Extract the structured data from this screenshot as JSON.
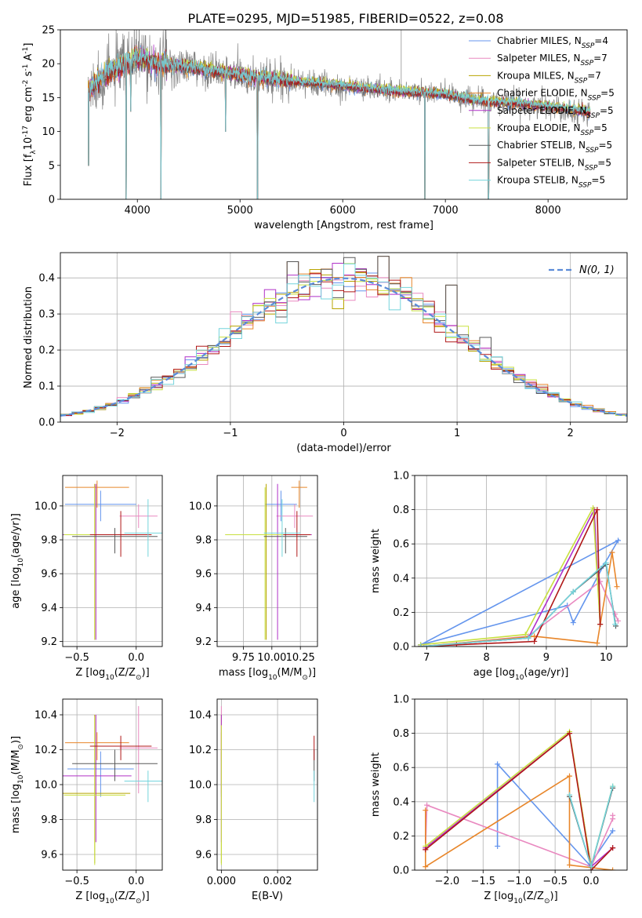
{
  "figure": {
    "title": "PLATE=0295, MJD=51985, FIBERID=0522, z=0.08"
  },
  "colors": {
    "Chabrier MILES": "#6495ed",
    "Salpeter MILES": "#e989c0",
    "Kroupa MILES": "#b8a400",
    "Chabrier ELODIE": "#e8862a",
    "Salpeter ELODIE": "#b030c8",
    "Kroupa ELODIE": "#c8e040",
    "Chabrier STELIB": "#595959",
    "Salpeter STELIB": "#b01818",
    "Kroupa STELIB": "#74d4dc",
    "gaussian": "#5b8bd8",
    "grid": "#b0b0b0",
    "spectrum_data": "#808080"
  },
  "chart_data": [
    {
      "id": "spectrum",
      "type": "line",
      "xlabel": "wavelength [Angstrom, rest frame]",
      "ylabel": "Flux [f$_\\lambda$10$^{-17}$ erg cm$^{-2}$ s$^{-1}$ A$^{-1}$]",
      "xlim": [
        3250,
        8770
      ],
      "ylim": [
        0,
        25
      ],
      "xticks": [
        4000,
        5000,
        6000,
        7000,
        8000
      ],
      "yticks": [
        0,
        5,
        10,
        15,
        20,
        25
      ],
      "grid": false,
      "legend_position": "top-right",
      "legend": [
        {
          "model": "Chabrier MILES",
          "label": "Chabrier MILES, N",
          "sub": "SSP",
          "eq": "=4"
        },
        {
          "model": "Salpeter MILES",
          "label": "Salpeter MILES, N",
          "sub": "SSP",
          "eq": "=7"
        },
        {
          "model": "Kroupa MILES",
          "label": "Kroupa MILES, N",
          "sub": "SSP",
          "eq": "=7"
        },
        {
          "model": "Chabrier ELODIE",
          "label": "Chabrier ELODIE, N",
          "sub": "SSP",
          "eq": "=5"
        },
        {
          "model": "Salpeter ELODIE",
          "label": "Salpeter ELODIE, N",
          "sub": "SSP",
          "eq": "=5"
        },
        {
          "model": "Kroupa ELODIE",
          "label": "Kroupa ELODIE, N",
          "sub": "SSP",
          "eq": "=5"
        },
        {
          "model": "Chabrier STELIB",
          "label": "Chabrier STELIB, N",
          "sub": "SSP",
          "eq": "=5"
        },
        {
          "model": "Salpeter STELIB",
          "label": "Salpeter STELIB, N",
          "sub": "SSP",
          "eq": "=5"
        },
        {
          "model": "Kroupa STELIB",
          "label": "Kroupa STELIB, N",
          "sub": "SSP",
          "eq": "=5"
        }
      ],
      "trend_x": [
        3520,
        3700,
        3900,
        4000,
        4200,
        4500,
        4800,
        5000,
        5300,
        5600,
        5900,
        6200,
        6500,
        6800,
        7000,
        7200,
        7400,
        7600,
        7800,
        8000,
        8200,
        8400
      ],
      "trend_y": [
        16.0,
        18.5,
        20.0,
        21.0,
        20.0,
        19.5,
        18.8,
        18.3,
        17.8,
        17.3,
        16.9,
        16.4,
        16.0,
        15.7,
        15.5,
        14.8,
        14.4,
        14.3,
        14.0,
        13.7,
        13.3,
        12.8
      ],
      "absorption_features": [
        {
          "x": 3525,
          "y": 5.0
        },
        {
          "x": 3890,
          "y": 0.0
        },
        {
          "x": 3935,
          "y": 13.0
        },
        {
          "x": 4230,
          "y": 0.0
        },
        {
          "x": 4860,
          "y": 10.0
        },
        {
          "x": 5170,
          "y": 0.0
        },
        {
          "x": 6800,
          "y": 0.0
        },
        {
          "x": 7420,
          "y": 0.0
        }
      ],
      "emission_features": [
        {
          "x": 6570,
          "y": 25.0
        }
      ]
    },
    {
      "id": "residuals",
      "type": "area",
      "xlabel": "(data-model)/error",
      "ylabel": "Normed distribution",
      "xlim": [
        -2.5,
        2.5
      ],
      "ylim": [
        0,
        0.47
      ],
      "xticks": [
        -2,
        -1,
        0,
        1,
        2
      ],
      "yticks": [
        0.0,
        0.1,
        0.2,
        0.3,
        0.4
      ],
      "grid": true,
      "legend_position": "top-right",
      "legend": [
        {
          "label": "$\\mathcal{N}(0,1)$",
          "symbol": "N(0, 1)"
        }
      ],
      "bin_width": 0.1,
      "bin_start": -2.5,
      "peak_bins": [
        {
          "x": -0.45,
          "y": 0.445
        },
        {
          "x": 0.35,
          "y": 0.46
        },
        {
          "x": 0.95,
          "y": 0.38
        },
        {
          "x": 1.25,
          "y": 0.235
        }
      ]
    },
    {
      "id": "age-vs-Z",
      "type": "scatter",
      "xlabel": "Z [log$_{10}$(Z/Z$_\\odot$)]",
      "ylabel": "age  [log$_{10}$(age/yr)]",
      "xlim": [
        -0.62,
        0.22
      ],
      "ylim": [
        9.17,
        10.18
      ],
      "xticks": [
        -0.5,
        0.0
      ],
      "yticks": [
        9.2,
        9.4,
        9.6,
        9.8,
        10.0
      ],
      "grid": true,
      "points": [
        {
          "model": "Chabrier MILES",
          "x": -0.3,
          "y": 10.01,
          "xerr": 0.3,
          "yerr": [
            0.1,
            0.08
          ]
        },
        {
          "model": "Salpeter MILES",
          "x": 0.02,
          "y": 9.94,
          "xerr": 0.16,
          "yerr": [
            0.07,
            0.07
          ]
        },
        {
          "model": "Kroupa MILES",
          "x": -0.35,
          "y": 9.83,
          "xerr": 0.3,
          "yerr": [
            0.62,
            0.3
          ]
        },
        {
          "model": "Chabrier ELODIE",
          "x": -0.33,
          "y": 10.11,
          "xerr": 0.27,
          "yerr": [
            0.12,
            0.04
          ]
        },
        {
          "model": "Salpeter ELODIE",
          "x": -0.34,
          "y": 9.83,
          "xerr": 0.28,
          "yerr": [
            0.62,
            0.3
          ]
        },
        {
          "model": "Kroupa ELODIE",
          "x": -0.35,
          "y": 9.83,
          "xerr": 0.26,
          "yerr": [
            0.62,
            0.28
          ]
        },
        {
          "model": "Chabrier STELIB",
          "x": -0.18,
          "y": 9.82,
          "xerr": 0.36,
          "yerr": [
            0.1,
            0.05
          ]
        },
        {
          "model": "Salpeter STELIB",
          "x": -0.13,
          "y": 9.83,
          "xerr": 0.26,
          "yerr": [
            0.13,
            0.14
          ]
        },
        {
          "model": "Kroupa STELIB",
          "x": 0.1,
          "y": 9.84,
          "xerr": 0.2,
          "yerr": [
            0.14,
            0.2
          ]
        }
      ]
    },
    {
      "id": "age-vs-mass",
      "type": "scatter",
      "xlabel": "mass [log$_{10}$(M/M$_\\odot$)]",
      "ylabel": "",
      "xlim": [
        9.52,
        10.4
      ],
      "ylim": [
        9.17,
        10.18
      ],
      "xticks": [
        9.75,
        10.0,
        10.25
      ],
      "xticklabels": [
        "9.75",
        "10.00",
        "10.25"
      ],
      "yticks": [
        9.2,
        9.4,
        9.6,
        9.8,
        10.0
      ],
      "grid": true,
      "points": [
        {
          "model": "Chabrier MILES",
          "x": 10.08,
          "y": 10.01,
          "xerr": 0.14,
          "yerr": [
            0.1,
            0.08
          ]
        },
        {
          "model": "Salpeter MILES",
          "x": 10.2,
          "y": 9.94,
          "xerr": 0.16,
          "yerr": [
            0.07,
            0.07
          ]
        },
        {
          "model": "Kroupa MILES",
          "x": 9.95,
          "y": 9.83,
          "xerr": 0.35,
          "yerr": [
            0.62,
            0.3
          ]
        },
        {
          "model": "Chabrier ELODIE",
          "x": 10.24,
          "y": 10.11,
          "xerr": 0.07,
          "yerr": [
            0.12,
            0.04
          ]
        },
        {
          "model": "Salpeter ELODIE",
          "x": 10.05,
          "y": 9.83,
          "xerr": 0.3,
          "yerr": [
            0.62,
            0.3
          ]
        },
        {
          "model": "Kroupa ELODIE",
          "x": 9.94,
          "y": 9.83,
          "xerr": 0.35,
          "yerr": [
            0.62,
            0.28
          ]
        },
        {
          "model": "Chabrier STELIB",
          "x": 10.12,
          "y": 9.82,
          "xerr": 0.19,
          "yerr": [
            0.1,
            0.05
          ]
        },
        {
          "model": "Salpeter STELIB",
          "x": 10.22,
          "y": 9.83,
          "xerr": 0.12,
          "yerr": [
            0.13,
            0.14
          ]
        },
        {
          "model": "Kroupa STELIB",
          "x": 10.09,
          "y": 9.84,
          "xerr": 0.16,
          "yerr": [
            0.14,
            0.2
          ]
        }
      ]
    },
    {
      "id": "mass-weight-vs-age",
      "type": "line",
      "xlabel": "age  [log$_{10}$(age/yr)]",
      "ylabel": "mass weight",
      "xlim": [
        6.8,
        10.35
      ],
      "ylim": [
        0,
        1.0
      ],
      "xticks": [
        7,
        8,
        9,
        10
      ],
      "yticks": [
        0.0,
        0.2,
        0.4,
        0.6,
        0.8,
        1.0
      ],
      "grid": true,
      "series": [
        {
          "model": "Chabrier MILES",
          "x": [
            6.9,
            9.35,
            9.45,
            9.95,
            10.2,
            6.9
          ],
          "y": [
            0.01,
            0.24,
            0.14,
            0.47,
            0.62,
            0.01
          ]
        },
        {
          "model": "Salpeter MILES",
          "x": [
            6.95,
            8.7,
            9.9,
            10.15,
            10.2
          ],
          "y": [
            0.0,
            0.06,
            0.38,
            0.19,
            0.15
          ]
        },
        {
          "model": "Chabrier ELODIE",
          "x": [
            6.9,
            8.8,
            9.85,
            10.1,
            10.18
          ],
          "y": [
            0.0,
            0.06,
            0.02,
            0.55,
            0.35
          ]
        },
        {
          "model": "Salpeter ELODIE",
          "x": [
            6.9,
            8.7,
            9.8,
            9.9
          ],
          "y": [
            0.0,
            0.05,
            0.8,
            0.13
          ]
        },
        {
          "model": "Kroupa ELODIE",
          "x": [
            6.9,
            8.65,
            9.78,
            9.9
          ],
          "y": [
            0.01,
            0.07,
            0.81,
            0.13
          ]
        },
        {
          "model": "Chabrier STELIB",
          "x": [
            6.9,
            8.7,
            9.45,
            10.0,
            10.16
          ],
          "y": [
            0.0,
            0.05,
            0.32,
            0.48,
            0.12
          ]
        },
        {
          "model": "Salpeter STELIB",
          "x": [
            6.9,
            7.5,
            8.8,
            9.85,
            9.9
          ],
          "y": [
            0.0,
            0.01,
            0.03,
            0.8,
            0.13
          ]
        },
        {
          "model": "Kroupa STELIB",
          "x": [
            6.9,
            8.7,
            9.45,
            10.0,
            10.15
          ],
          "y": [
            0.0,
            0.05,
            0.32,
            0.49,
            0.13
          ]
        }
      ]
    },
    {
      "id": "mass-vs-Z",
      "type": "scatter",
      "xlabel": "Z [log$_{10}$(Z/Z$_\\odot$)]",
      "ylabel": "mass [log$_{10}$(M/M$_\\odot$)]",
      "xlim": [
        -0.62,
        0.22
      ],
      "ylim": [
        9.51,
        10.49
      ],
      "xticks": [
        -0.5,
        0.0
      ],
      "yticks": [
        9.6,
        9.8,
        10.0,
        10.2,
        10.4
      ],
      "grid": true,
      "points": [
        {
          "model": "Chabrier MILES",
          "x": -0.3,
          "y": 10.09,
          "xerr": 0.28,
          "yerr": [
            0.16,
            0.1
          ]
        },
        {
          "model": "Salpeter MILES",
          "x": 0.02,
          "y": 10.21,
          "xerr": 0.16,
          "yerr": [
            0.26,
            0.24
          ]
        },
        {
          "model": "Kroupa MILES",
          "x": -0.35,
          "y": 9.95,
          "xerr": 0.3,
          "yerr": [
            0.4,
            0.45
          ]
        },
        {
          "model": "Chabrier ELODIE",
          "x": -0.33,
          "y": 10.24,
          "xerr": 0.27,
          "yerr": [
            0.1,
            0.06
          ]
        },
        {
          "model": "Salpeter ELODIE",
          "x": -0.34,
          "y": 10.05,
          "xerr": 0.3,
          "yerr": [
            0.38,
            0.35
          ]
        },
        {
          "model": "Kroupa ELODIE",
          "x": -0.35,
          "y": 9.94,
          "xerr": 0.26,
          "yerr": [
            0.4,
            0.45
          ]
        },
        {
          "model": "Chabrier STELIB",
          "x": -0.18,
          "y": 10.12,
          "xerr": 0.36,
          "yerr": [
            0.1,
            0.08
          ]
        },
        {
          "model": "Salpeter STELIB",
          "x": -0.13,
          "y": 10.22,
          "xerr": 0.26,
          "yerr": [
            0.08,
            0.06
          ]
        },
        {
          "model": "Kroupa STELIB",
          "x": 0.1,
          "y": 10.02,
          "xerr": 0.2,
          "yerr": [
            0.12,
            0.06
          ]
        }
      ]
    },
    {
      "id": "mass-vs-EBV",
      "type": "scatter",
      "xlabel": "E(B-V)",
      "ylabel": "",
      "xlim": [
        -0.00015,
        0.00342
      ],
      "ylim": [
        9.51,
        10.49
      ],
      "xticks": [
        0.0,
        0.002
      ],
      "xticklabels": [
        "0.000",
        "0.002"
      ],
      "yticks": [
        9.6,
        9.8,
        10.0,
        10.2,
        10.4
      ],
      "grid": true,
      "points": [
        {
          "model": "Chabrier MILES",
          "x": 0.0,
          "y": 10.09,
          "xerr": 0,
          "yerr": [
            0.16,
            0.1
          ]
        },
        {
          "model": "Salpeter MILES",
          "x": 0.0,
          "y": 10.21,
          "xerr": 0,
          "yerr": [
            0.26,
            0.24
          ]
        },
        {
          "model": "Kroupa MILES",
          "x": 0.0,
          "y": 9.95,
          "xerr": 0,
          "yerr": [
            0.4,
            0.45
          ]
        },
        {
          "model": "Chabrier ELODIE",
          "x": 0.0,
          "y": 10.24,
          "xerr": 0,
          "yerr": [
            0.1,
            0.06
          ]
        },
        {
          "model": "Salpeter ELODIE",
          "x": 0.0,
          "y": 10.05,
          "xerr": 0,
          "yerr": [
            0.38,
            0.35
          ]
        },
        {
          "model": "Kroupa ELODIE",
          "x": 0.0,
          "y": 9.94,
          "xerr": 0,
          "yerr": [
            0.4,
            0.4
          ]
        },
        {
          "model": "Chabrier STELIB",
          "x": 0.0033,
          "y": 10.12,
          "xerr": 0,
          "yerr": [
            0.1,
            0.08
          ]
        },
        {
          "model": "Salpeter STELIB",
          "x": 0.0033,
          "y": 10.22,
          "xerr": 0,
          "yerr": [
            0.08,
            0.06
          ]
        },
        {
          "model": "Kroupa STELIB",
          "x": 0.0033,
          "y": 10.02,
          "xerr": 0,
          "yerr": [
            0.12,
            0.06
          ]
        }
      ]
    },
    {
      "id": "mass-weight-vs-Z",
      "type": "line",
      "xlabel": "Z [log$_{10}$(Z/Z$_\\odot$)]",
      "ylabel": "mass weight",
      "xlim": [
        -2.45,
        0.5
      ],
      "ylim": [
        0,
        1.0
      ],
      "xticks": [
        -2.0,
        -1.5,
        -1.0,
        -0.5,
        0.0
      ],
      "yticks": [
        0.0,
        0.2,
        0.4,
        0.6,
        0.8,
        1.0
      ],
      "grid": true,
      "series": [
        {
          "model": "Chabrier MILES",
          "x": [
            -1.3,
            -1.3,
            -0.02,
            0.3
          ],
          "y": [
            0.14,
            0.62,
            0.03,
            0.23
          ]
        },
        {
          "model": "Salpeter MILES",
          "x": [
            -2.3,
            -2.28,
            0.0,
            0.3,
            0.3
          ],
          "y": [
            0.12,
            0.38,
            0.02,
            0.3,
            0.32
          ]
        },
        {
          "model": "Chabrier ELODIE",
          "x": [
            -2.3,
            -2.3,
            -0.3,
            -0.3,
            0.3
          ],
          "y": [
            0.35,
            0.02,
            0.55,
            0.03,
            0.0
          ]
        },
        {
          "model": "Salpeter ELODIE",
          "x": [
            -2.3,
            -0.3,
            0.0,
            0.3
          ],
          "y": [
            0.13,
            0.8,
            0.02,
            0.13
          ]
        },
        {
          "model": "Kroupa ELODIE",
          "x": [
            -2.3,
            -0.3,
            0.0,
            0.3
          ],
          "y": [
            0.14,
            0.81,
            0.02,
            0.49
          ]
        },
        {
          "model": "Chabrier STELIB",
          "x": [
            -0.3,
            0.0,
            0.3
          ],
          "y": [
            0.43,
            0.02,
            0.48
          ]
        },
        {
          "model": "Salpeter STELIB",
          "x": [
            -2.3,
            -0.3,
            0.0,
            0.3
          ],
          "y": [
            0.12,
            0.8,
            0.0,
            0.13
          ]
        },
        {
          "model": "Kroupa STELIB",
          "x": [
            -0.3,
            0.0,
            0.3
          ],
          "y": [
            0.44,
            0.02,
            0.49
          ]
        }
      ]
    }
  ]
}
